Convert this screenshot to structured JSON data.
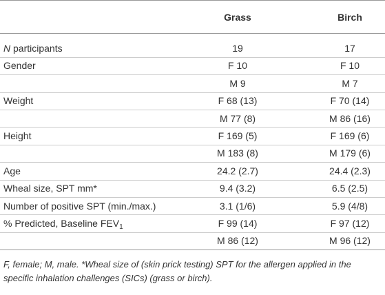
{
  "table": {
    "columns": [
      "Grass",
      "Birch"
    ],
    "rows": [
      {
        "label": [
          {
            "text": "N",
            "italic": true
          },
          {
            "text": " participants"
          }
        ],
        "cells": [
          "19",
          "17"
        ]
      },
      {
        "label": [
          {
            "text": "Gender"
          }
        ],
        "cells": [
          "F 10",
          "F 10"
        ]
      },
      {
        "label": [],
        "cells": [
          "M 9",
          "M 7"
        ]
      },
      {
        "label": [
          {
            "text": "Weight"
          }
        ],
        "cells": [
          "F 68 (13)",
          "F 70 (14)"
        ]
      },
      {
        "label": [],
        "cells": [
          "M 77 (8)",
          "M 86 (16)"
        ]
      },
      {
        "label": [
          {
            "text": "Height"
          }
        ],
        "cells": [
          "F 169 (5)",
          "F 169 (6)"
        ]
      },
      {
        "label": [],
        "cells": [
          "M 183 (8)",
          "M 179 (6)"
        ]
      },
      {
        "label": [
          {
            "text": "Age"
          }
        ],
        "cells": [
          "24.2 (2.7)",
          "24.4 (2.3)"
        ]
      },
      {
        "label": [
          {
            "text": "Wheal size, SPT mm*"
          }
        ],
        "cells": [
          "9.4 (3.2)",
          "6.5 (2.5)"
        ]
      },
      {
        "label": [
          {
            "text": "Number of positive SPT (min./max.)"
          }
        ],
        "cells": [
          "3.1 (1/6)",
          "5.9 (4/8)"
        ]
      },
      {
        "label": [
          {
            "text": "% Predicted, Baseline FEV"
          },
          {
            "text": "1",
            "sub": true
          }
        ],
        "cells": [
          "F 99 (14)",
          "F 97 (12)"
        ]
      },
      {
        "label": [],
        "cells": [
          "M 86 (12)",
          "M 96 (12)"
        ]
      }
    ],
    "footnote": "F, female; M, male. *Wheal size of (skin prick testing) SPT for the allergen applied in the specific inhalation challenges (SICs) (grass or birch)."
  }
}
